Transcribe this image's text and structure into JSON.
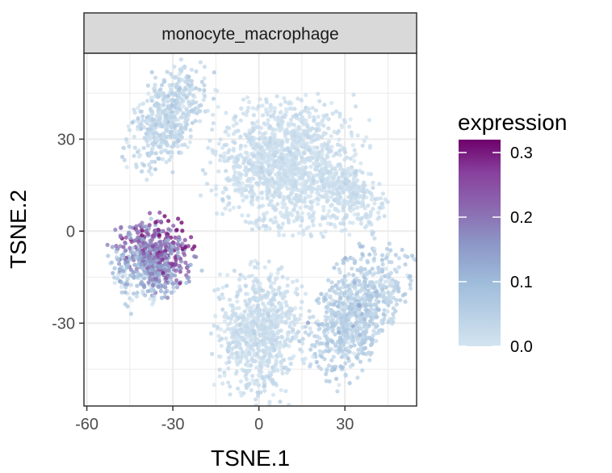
{
  "chart_data": {
    "type": "scatter",
    "facet_label": "monocyte_macrophage",
    "xlabel": "TSNE.1",
    "ylabel": "TSNE.2",
    "xlim": [
      -61,
      55
    ],
    "ylim": [
      -57,
      58
    ],
    "x_ticks": [
      -60,
      -30,
      0,
      30
    ],
    "x_tick_labels": [
      "-60",
      "-30",
      "0",
      "30"
    ],
    "y_ticks": [
      -30,
      0,
      30
    ],
    "y_tick_labels": [
      "-30",
      "0",
      "30"
    ],
    "grid": true,
    "legend": {
      "title": "expression",
      "position": "right",
      "type": "colorbar",
      "range": [
        0.0,
        0.32
      ],
      "breaks": [
        0.0,
        0.1,
        0.2,
        0.3
      ],
      "break_labels": [
        "0.0",
        "0.1",
        "0.2",
        "0.3"
      ],
      "colors": [
        "#d3e4f0",
        "#9ebcda",
        "#8c96c6",
        "#8c6bb1",
        "#88419d",
        "#6e016b"
      ]
    },
    "clusters": [
      {
        "cx": -32,
        "cy": 37,
        "sx": 5,
        "sy": 9,
        "n": 500,
        "rot": -30,
        "expr_mean": 0.035,
        "expr_sd": 0.02,
        "shape": "ellipse"
      },
      {
        "cx": -37,
        "cy": -9,
        "sx": 6.5,
        "sy": 6,
        "n": 650,
        "rot": 20,
        "expr_mean": 0.17,
        "expr_sd": 0.06,
        "shape": "ellipse"
      },
      {
        "cx": 10,
        "cy": 22,
        "sx": 12,
        "sy": 10,
        "n": 1300,
        "rot": 0,
        "expr_mean": 0.015,
        "expr_sd": 0.012,
        "shape": "ellipse"
      },
      {
        "cx": 32,
        "cy": 12,
        "sx": 6,
        "sy": 4,
        "n": 250,
        "rot": -35,
        "expr_mean": 0.015,
        "expr_sd": 0.012,
        "shape": "ellipse"
      },
      {
        "cx": 0,
        "cy": -33,
        "sx": 7,
        "sy": 10,
        "n": 750,
        "rot": 0,
        "expr_mean": 0.02,
        "expr_sd": 0.015,
        "shape": "ellipse"
      },
      {
        "cx": 34,
        "cy": -26,
        "sx": 6,
        "sy": 11,
        "n": 800,
        "rot": -35,
        "expr_mean": 0.05,
        "expr_sd": 0.025,
        "shape": "ellipse"
      }
    ]
  }
}
